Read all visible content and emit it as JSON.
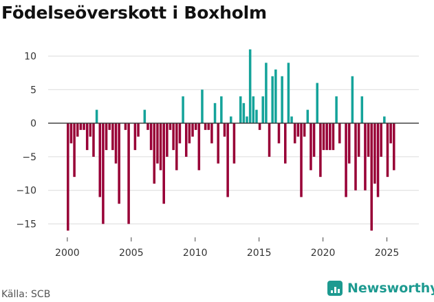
{
  "title": "Födelseöverskott i Boxholm",
  "source": "Källa: SCB",
  "brand": {
    "name": "Newsworthy",
    "icon": "bar-chart-icon",
    "color": "#1d9a90"
  },
  "chart_data": {
    "type": "bar",
    "title": "Födelseöverskott i Boxholm",
    "xlabel": "",
    "ylabel": "",
    "ylim": [
      -17,
      12
    ],
    "xlim": [
      1998.5,
      2027.5
    ],
    "y_ticks": [
      10,
      5,
      0,
      -5,
      -10,
      -15
    ],
    "x_ticks": [
      2000,
      2005,
      2010,
      2015,
      2020,
      2025
    ],
    "grid": true,
    "colors": {
      "positive": "#14a39a",
      "negative": "#980036"
    },
    "bar_width_years": 0.19,
    "series": [
      {
        "name": "Födelseöverskott",
        "x": [
          2000.05,
          2000.3,
          2000.55,
          2000.8,
          2001.05,
          2001.3,
          2001.55,
          2001.8,
          2002.05,
          2002.3,
          2002.55,
          2002.8,
          2003.05,
          2003.3,
          2003.55,
          2003.8,
          2004.05,
          2004.3,
          2004.55,
          2004.8,
          2005.05,
          2005.3,
          2005.55,
          2005.8,
          2006.05,
          2006.3,
          2006.55,
          2006.8,
          2007.05,
          2007.3,
          2007.55,
          2007.8,
          2008.05,
          2008.3,
          2008.55,
          2008.8,
          2009.05,
          2009.3,
          2009.55,
          2009.8,
          2010.05,
          2010.3,
          2010.55,
          2010.8,
          2011.05,
          2011.3,
          2011.55,
          2011.8,
          2012.05,
          2012.3,
          2012.55,
          2012.8,
          2013.05,
          2013.3,
          2013.55,
          2013.8,
          2014.05,
          2014.3,
          2014.55,
          2014.8,
          2015.05,
          2015.3,
          2015.55,
          2015.8,
          2016.05,
          2016.3,
          2016.55,
          2016.8,
          2017.05,
          2017.3,
          2017.55,
          2017.8,
          2018.05,
          2018.3,
          2018.55,
          2018.8,
          2019.05,
          2019.3,
          2019.55,
          2019.8,
          2020.05,
          2020.3,
          2020.55,
          2020.8,
          2021.05,
          2021.3,
          2021.55,
          2021.8,
          2022.05,
          2022.3,
          2022.55,
          2022.8,
          2023.05,
          2023.3,
          2023.55,
          2023.8,
          2024.05,
          2024.3,
          2024.55,
          2024.8,
          2025.05,
          2025.3,
          2025.55,
          2025.8
        ],
        "values": [
          -16,
          -3,
          -8,
          -2,
          -1,
          -1,
          -4,
          -2,
          -5,
          2,
          -11,
          -15,
          -4,
          -1,
          -4,
          -6,
          -12,
          0,
          -1,
          -15,
          0,
          -4,
          -2,
          0,
          2,
          -1,
          -4,
          -9,
          -6,
          -7,
          -12,
          -5,
          -1,
          -4,
          -7,
          -3,
          4,
          -5,
          -3,
          -2,
          -1,
          -7,
          5,
          -1,
          -1,
          -3,
          3,
          -6,
          4,
          -2,
          -11,
          1,
          -6,
          0,
          4,
          3,
          1,
          11,
          4,
          2,
          -1,
          4,
          9,
          -5,
          7,
          8,
          -3,
          7,
          -6,
          9,
          1,
          -3,
          -2,
          -11,
          -2,
          2,
          -7,
          -5,
          6,
          -8,
          -4,
          -4,
          -4,
          -4,
          4,
          -3,
          0,
          -11,
          -6,
          7,
          -10,
          -5,
          4,
          -10,
          -5,
          -16,
          -9,
          -11,
          -5,
          1,
          -8,
          -3,
          -7,
          0
        ]
      }
    ]
  }
}
